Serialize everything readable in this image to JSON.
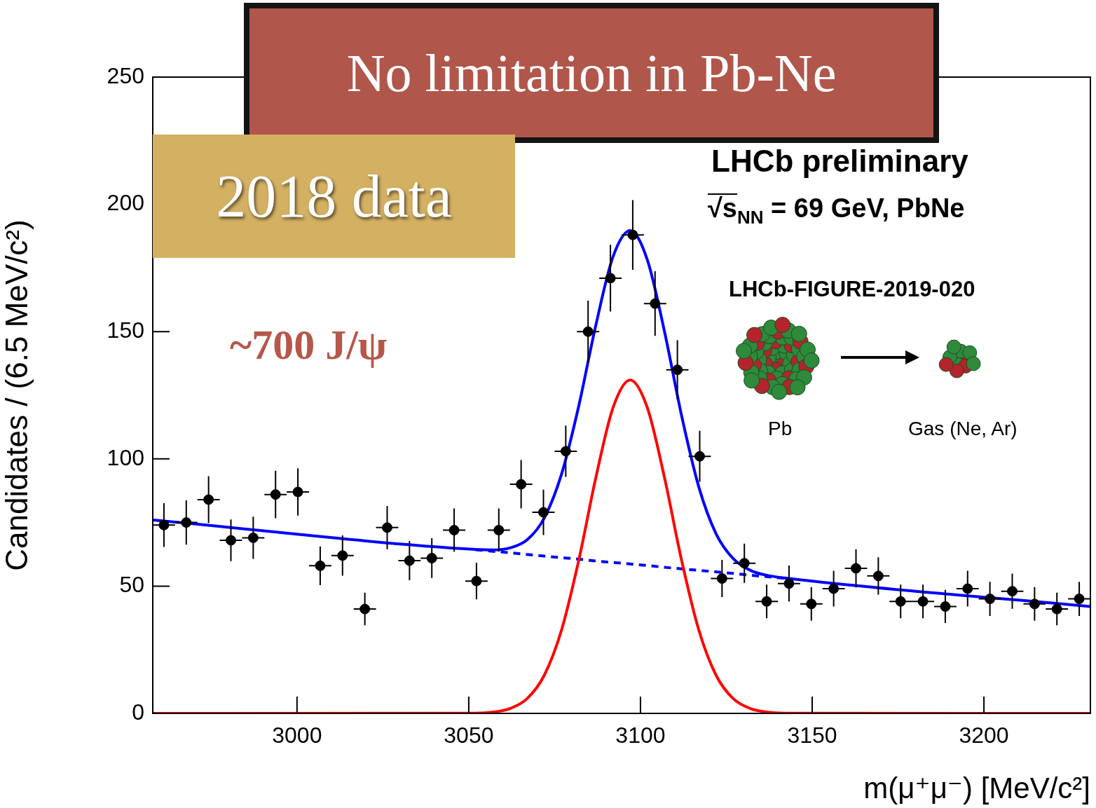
{
  "chart_data": {
    "type": "scatter",
    "x_label": "m(μ⁺μ⁻) [MeV/c²]",
    "y_label": "Candidates / (6.5 MeV/c²)",
    "xlim": [
      2958,
      3231
    ],
    "ylim": [
      0,
      250
    ],
    "xticks": [
      3000,
      3050,
      3100,
      3150,
      3200
    ],
    "yticks": [
      0,
      50,
      100,
      150,
      200,
      250
    ],
    "grid": false,
    "annotations": {
      "banner": "No limitation in Pb-Ne",
      "dataset": "2018 data",
      "yield": "~700 J/ψ",
      "experiment": "LHCb preliminary",
      "energy": {
        "base": "√s",
        "subscript": "NN",
        "text": " = 69 GeV, PbNe"
      },
      "figure_id": "LHCb-FIGURE-2019-020",
      "projectile": "Pb",
      "target": "Gas (Ne, Ar)"
    },
    "series": [
      {
        "type": "scatter",
        "color": "#000000",
        "marker": "circle",
        "x": [
          2961.25,
          2967.75,
          2974.25,
          2980.75,
          2987.25,
          2993.75,
          3000.25,
          3006.75,
          3013.25,
          3019.75,
          3026.25,
          3032.75,
          3039.25,
          3045.75,
          3052.25,
          3058.75,
          3065.25,
          3071.75,
          3078.25,
          3084.75,
          3091.25,
          3097.75,
          3104.25,
          3110.75,
          3117.25,
          3123.75,
          3130.25,
          3136.75,
          3143.25,
          3149.75,
          3156.25,
          3162.75,
          3169.25,
          3175.75,
          3182.25,
          3188.75,
          3195.25,
          3201.75,
          3208.25,
          3214.75,
          3221.25,
          3227.75
        ],
        "values": [
          74,
          75,
          84,
          68,
          69,
          86,
          87,
          58,
          62,
          41,
          73,
          60,
          61,
          72,
          52,
          72,
          90,
          79,
          103,
          150,
          171,
          188,
          161,
          135,
          101,
          53,
          59,
          44,
          51,
          43,
          49,
          57,
          54,
          44,
          44,
          42,
          49,
          45,
          48,
          43,
          41,
          45
        ],
        "errors": [
          8.6,
          8.7,
          9.2,
          8.2,
          8.3,
          9.3,
          9.3,
          7.6,
          7.9,
          6.4,
          8.5,
          7.7,
          7.8,
          8.5,
          7.2,
          8.5,
          9.5,
          8.9,
          10.1,
          12.2,
          13.1,
          13.7,
          12.7,
          11.6,
          10.0,
          7.3,
          7.7,
          6.6,
          7.1,
          6.6,
          7.0,
          7.5,
          7.3,
          6.6,
          6.6,
          6.5,
          7.0,
          6.7,
          6.9,
          6.6,
          6.4,
          6.7
        ],
        "x_error": 3.25
      },
      {
        "type": "line",
        "color": "#0000ff",
        "line_style": "solid",
        "x": [
          2958,
          3052,
          3057,
          3062,
          3067,
          3072,
          3077,
          3082,
          3087,
          3092,
          3097,
          3102,
          3107,
          3112,
          3117,
          3122,
          3127,
          3132,
          3137,
          3142,
          3231
        ],
        "values": [
          76,
          64.4,
          64.2,
          65.0,
          68.2,
          76.8,
          93.9,
          120.6,
          152.5,
          179.4,
          189.7,
          178.2,
          150.0,
          116.8,
          88.9,
          70.6,
          60.8,
          56.2,
          54.2,
          53.2,
          42
        ]
      },
      {
        "type": "line",
        "color": "#ff0000",
        "line_style": "solid",
        "x": [
          2958,
          3052,
          3057,
          3062,
          3067,
          3072,
          3077,
          3082,
          3087,
          3092,
          3097,
          3102,
          3107,
          3112,
          3117,
          3122,
          3127,
          3132,
          3137,
          3142,
          3231
        ],
        "values": [
          0,
          0.1,
          0.5,
          1.9,
          5.8,
          15.0,
          32.7,
          60.0,
          92.6,
          120.1,
          131,
          120.1,
          92.6,
          60.0,
          32.7,
          15.0,
          5.8,
          1.9,
          0.5,
          0.1,
          0
        ]
      },
      {
        "type": "line",
        "color": "#0000ff",
        "line_style": "dashed",
        "x": [
          3052,
          3057,
          3062,
          3067,
          3072,
          3077,
          3082,
          3087,
          3092,
          3097,
          3102,
          3107,
          3112,
          3117,
          3122,
          3127,
          3132,
          3137,
          3142
        ],
        "values": [
          64.3,
          63.7,
          63.1,
          62.4,
          61.8,
          61.2,
          60.6,
          59.9,
          59.3,
          58.7,
          58.1,
          57.4,
          56.8,
          56.2,
          55.6,
          55.0,
          54.3,
          53.7,
          53.1
        ]
      }
    ]
  }
}
